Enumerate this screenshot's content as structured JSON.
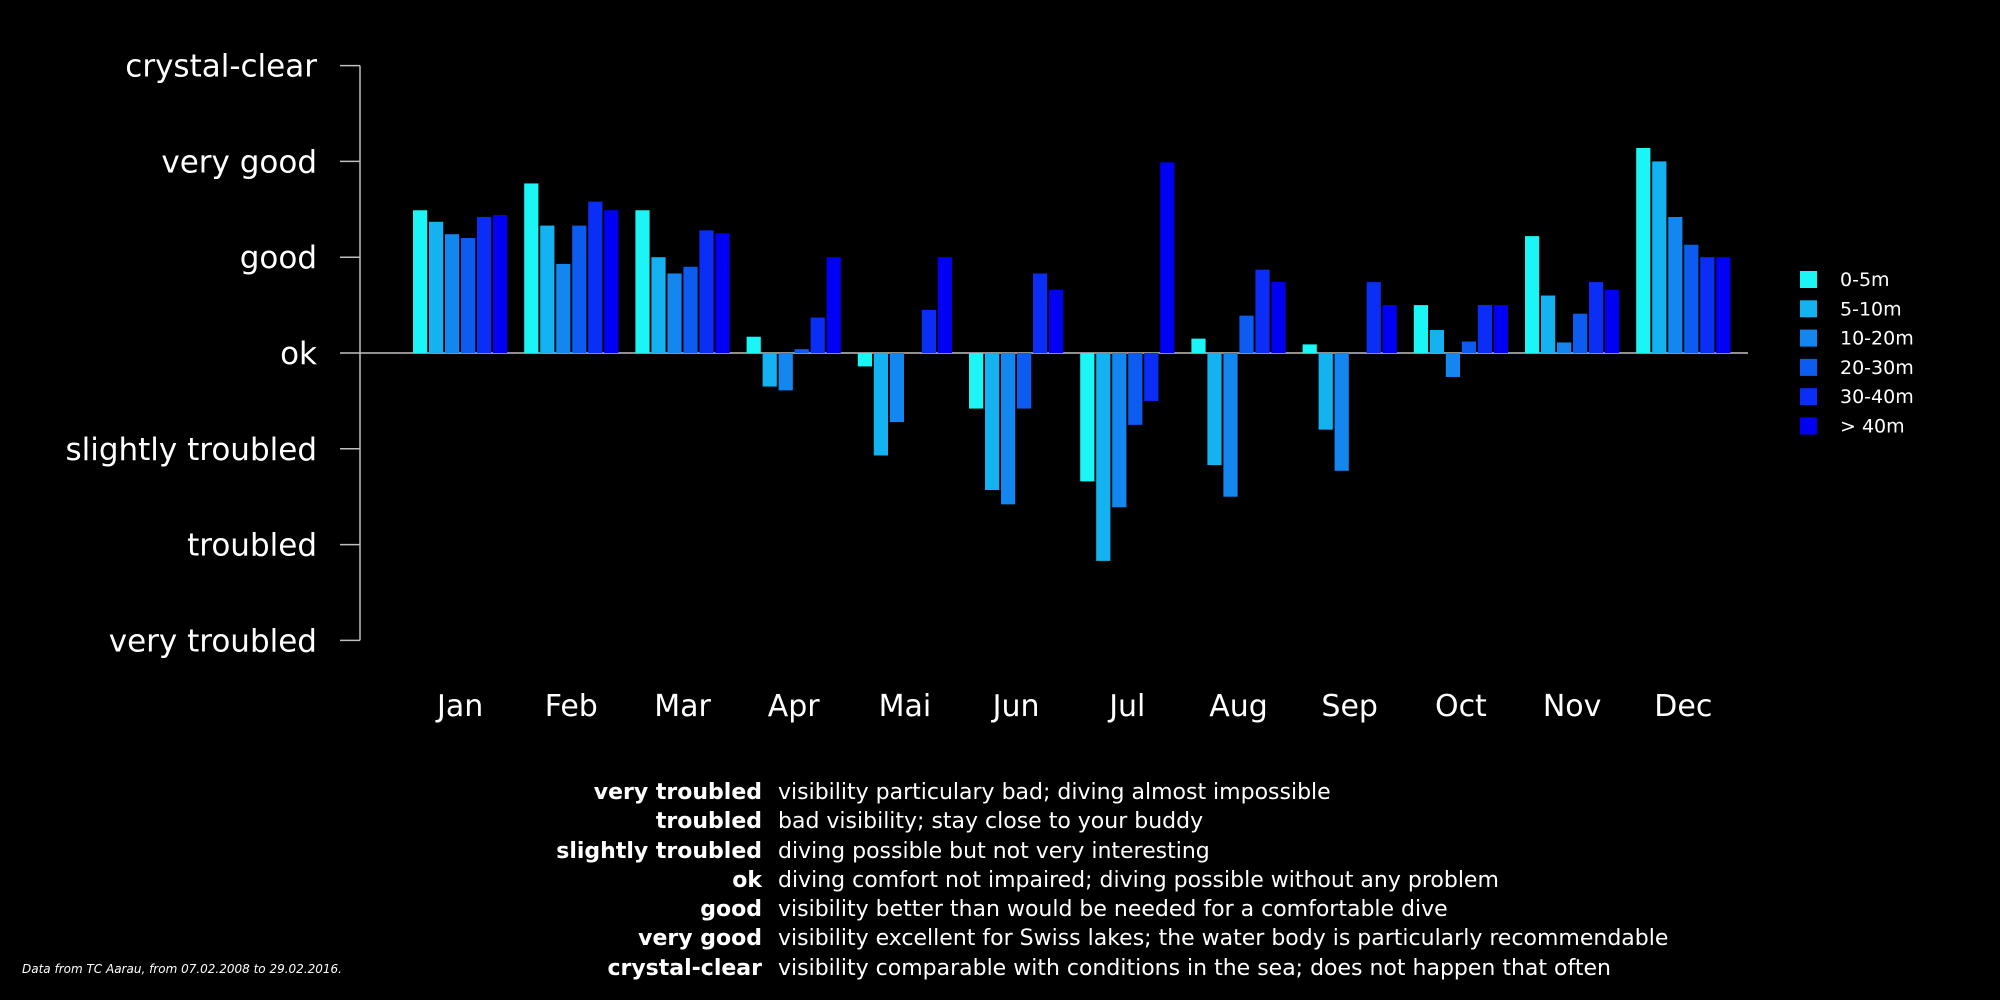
{
  "chart_data": {
    "type": "bar",
    "categories": [
      "Jan",
      "Feb",
      "Mar",
      "Apr",
      "Mai",
      "Jun",
      "Jul",
      "Aug",
      "Sep",
      "Oct",
      "Nov",
      "Dec"
    ],
    "y_levels": [
      "very troubled",
      "troubled",
      "slightly troubled",
      "ok",
      "good",
      "very good",
      "crystal-clear"
    ],
    "ylim": [
      -3,
      3
    ],
    "legend_position": "right",
    "series": [
      {
        "name": "0-5m",
        "color": "#1cf5f5",
        "values": [
          1.49,
          1.77,
          1.49,
          0.17,
          -0.14,
          -0.58,
          -1.34,
          0.15,
          0.09,
          0.5,
          1.22,
          2.14
        ]
      },
      {
        "name": "5-10m",
        "color": "#14b2f0",
        "values": [
          1.37,
          1.33,
          1.0,
          -0.35,
          -1.07,
          -1.43,
          -2.17,
          -1.17,
          -0.8,
          0.24,
          0.6,
          2.0
        ]
      },
      {
        "name": "10-20m",
        "color": "#1386ef",
        "values": [
          1.24,
          0.93,
          0.83,
          -0.39,
          -0.72,
          -1.58,
          -1.61,
          -1.5,
          -1.23,
          -0.25,
          0.11,
          1.42
        ]
      },
      {
        "name": "20-30m",
        "color": "#0d5cf0",
        "values": [
          1.2,
          1.33,
          0.9,
          0.04,
          null,
          -0.58,
          -0.75,
          0.39,
          null,
          0.12,
          0.41,
          1.13
        ]
      },
      {
        "name": "30-40m",
        "color": "#0a2ef5",
        "values": [
          1.42,
          1.58,
          1.28,
          0.37,
          0.45,
          0.83,
          -0.5,
          0.87,
          0.74,
          0.5,
          0.74,
          1.0
        ]
      },
      {
        "name": "> 40m",
        "color": "#0000f5",
        "values": [
          1.44,
          1.49,
          1.25,
          1.0,
          1.0,
          0.66,
          1.99,
          0.74,
          0.5,
          0.5,
          0.66,
          1.0
        ]
      }
    ]
  },
  "glossary": [
    {
      "term": "very troubled",
      "definition": "visibility particulary bad; diving almost impossible"
    },
    {
      "term": "troubled",
      "definition": "bad visibility; stay close to your buddy"
    },
    {
      "term": "slightly troubled",
      "definition": "diving possible but not very interesting"
    },
    {
      "term": "ok",
      "definition": "diving comfort not impaired; diving possible without any problem"
    },
    {
      "term": "good",
      "definition": "visibility better than would be needed for a comfortable dive"
    },
    {
      "term": "very good",
      "definition": "visibility excellent for Swiss lakes; the water body is particularly recommendable"
    },
    {
      "term": "crystal-clear",
      "definition": "visibility comparable with conditions in the sea; does not happen that often"
    }
  ],
  "source_note": "Data from TC Aarau, from 07.02.2008 to 29.02.2016."
}
